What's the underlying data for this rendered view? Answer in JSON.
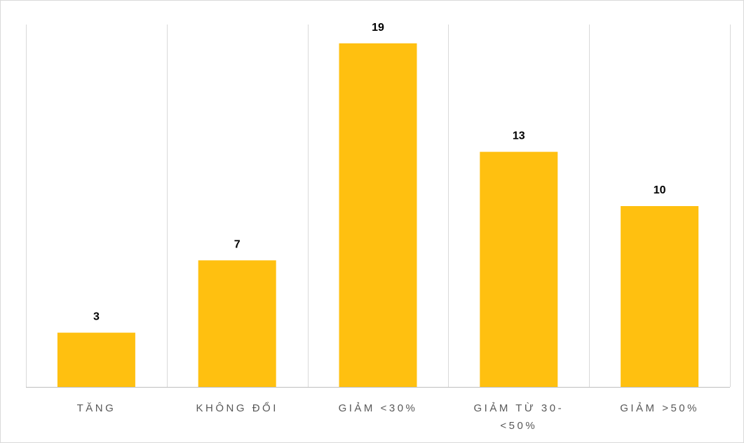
{
  "chart_data": {
    "type": "bar",
    "categories": [
      [
        "TĂNG"
      ],
      [
        "KHÔNG ĐỔI"
      ],
      [
        "GIẢM <30%"
      ],
      [
        "GIẢM TỪ 30-",
        "<50%"
      ],
      [
        "GIẢM >50%"
      ]
    ],
    "values": [
      3,
      7,
      19,
      13,
      10
    ],
    "data_labels": [
      "3",
      "7",
      "19",
      "13",
      "10"
    ],
    "ylim": [
      0,
      20
    ],
    "grid": "vertical category separators",
    "bar_color": "#FFC010",
    "gridline_color": "#d9d9d9",
    "axis_color": "#bfbfbf"
  }
}
